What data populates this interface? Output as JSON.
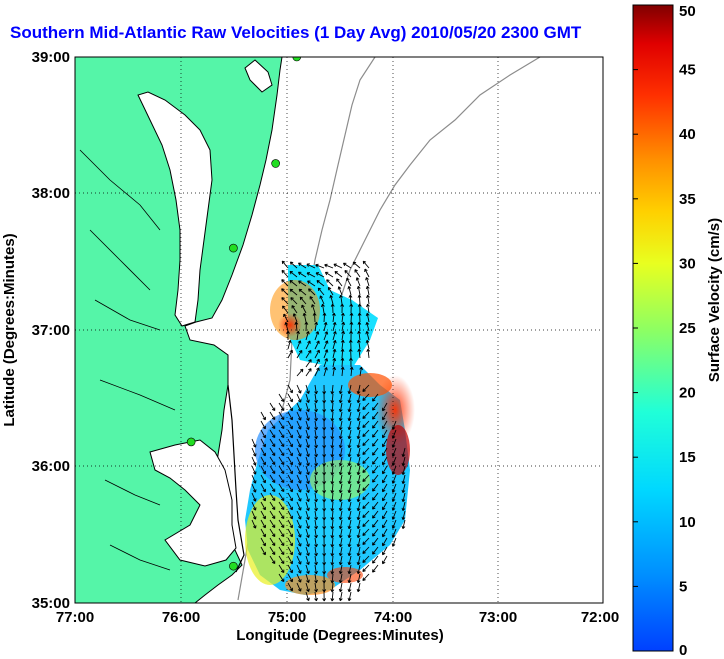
{
  "title": "Southern Mid-Atlantic Raw Velocities (1 Day Avg) 2010/05/20 2300 GMT",
  "title_color": "#0000ff",
  "x_axis": {
    "label": "Longitude (Degrees:Minutes)",
    "ticks": [
      "77:00",
      "76:00",
      "75:00",
      "74:00",
      "73:00",
      "72:00"
    ]
  },
  "y_axis": {
    "label": "Latitude (Degrees:Minutes)",
    "ticks": [
      "35:00",
      "36:00",
      "37:00",
      "38:00",
      "39:00"
    ]
  },
  "colorbar": {
    "label": "Surface Velocity (cm/s)",
    "ticks": [
      "0",
      "5",
      "10",
      "15",
      "20",
      "25",
      "30",
      "35",
      "40",
      "45",
      "50"
    ],
    "range": [
      0,
      50
    ]
  },
  "colors": {
    "land": "#55f5a8",
    "coast": "#000000",
    "bathymetry": "#8c8c8c",
    "grid": "#000000",
    "station": "#22dd22"
  },
  "map_extent": {
    "lon": [
      -77,
      -72
    ],
    "lat": [
      35,
      39
    ]
  },
  "stations": [
    {
      "lon": -74.9,
      "lat": 39.0
    },
    {
      "lon": -75.1,
      "lat": 38.22
    },
    {
      "lon": -75.5,
      "lat": 37.6
    },
    {
      "lon": -75.9,
      "lat": 36.18
    },
    {
      "lon": -75.5,
      "lat": 35.27
    }
  ]
}
